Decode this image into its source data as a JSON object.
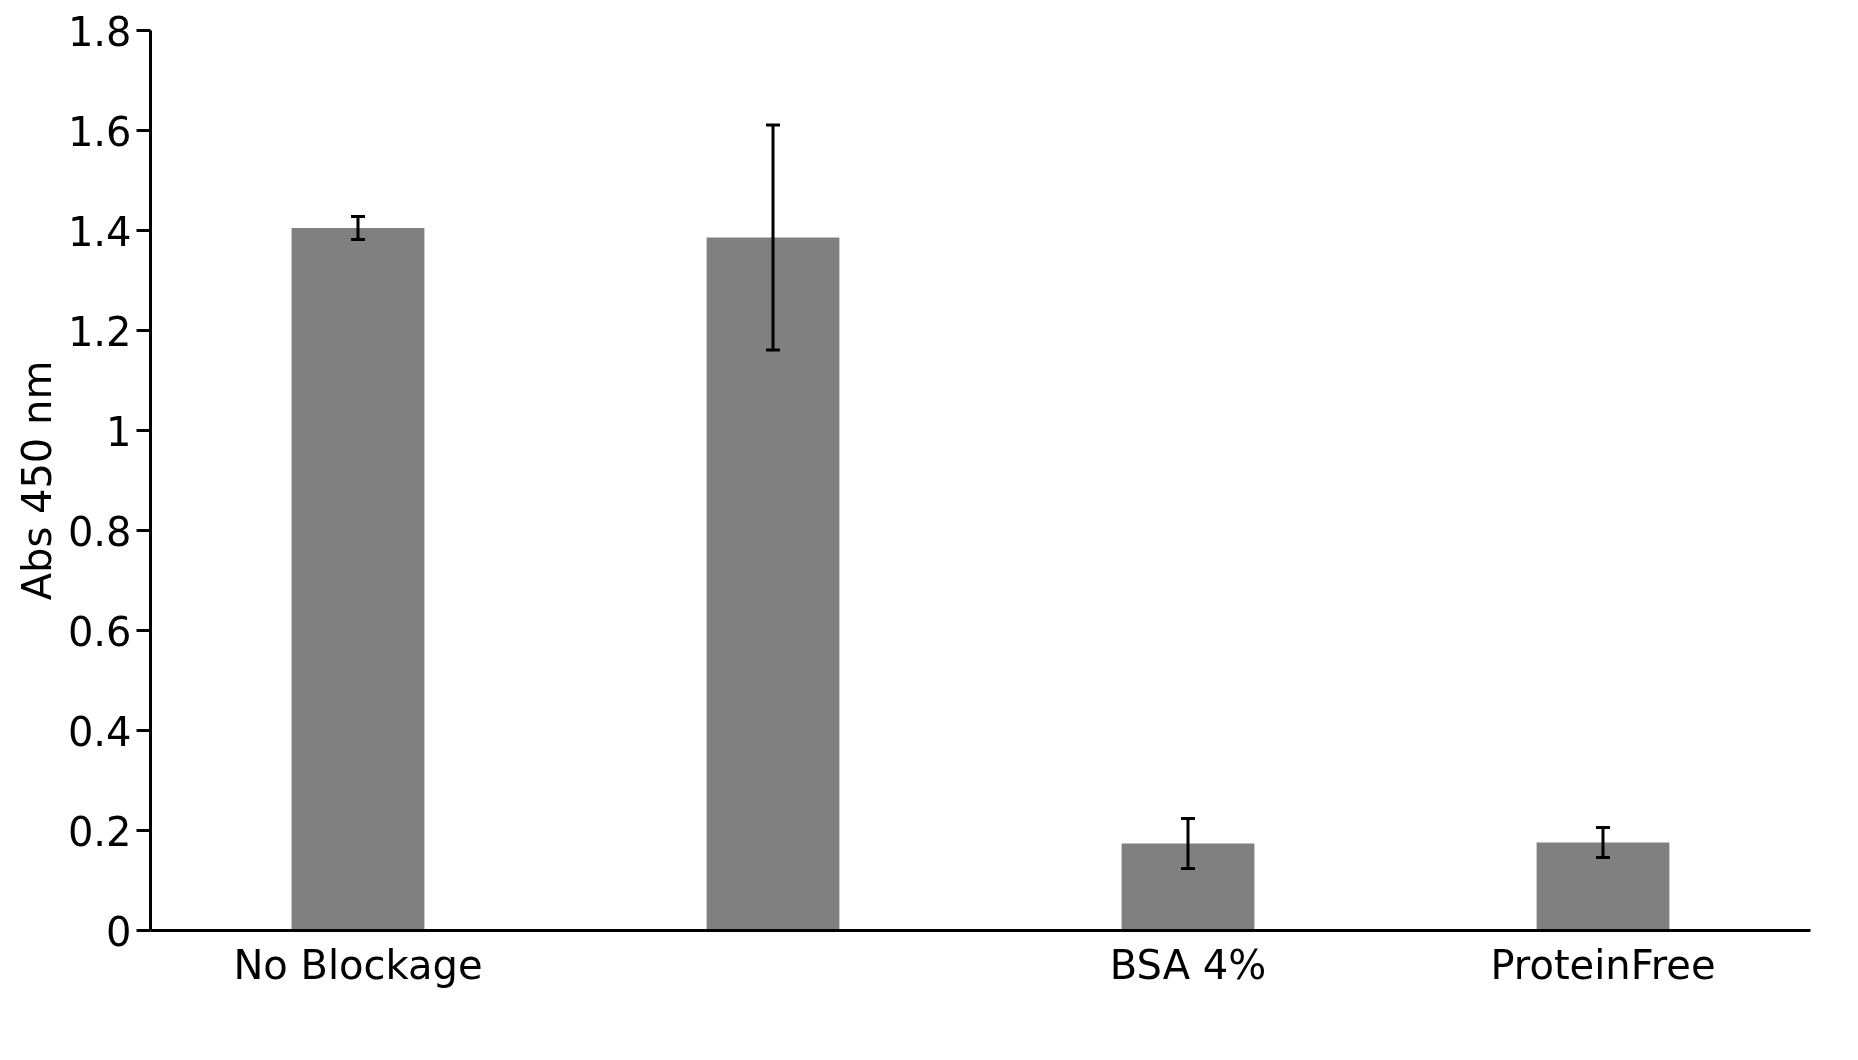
{
  "chart_data": {
    "type": "bar",
    "ylabel": "Abs 450 nm",
    "categories": [
      "No Blockage",
      null,
      "BSA 4%",
      "ProteinFree"
    ],
    "values": [
      1.405,
      1.386,
      0.174,
      0.176
    ],
    "errors": [
      0.023,
      0.225,
      0.05,
      0.03
    ],
    "color": "#808080",
    "ylim": [
      0,
      1.8
    ],
    "yticks": [
      0,
      0.2,
      0.4,
      0.6,
      0.8,
      1,
      1.2,
      1.4,
      1.6,
      1.8
    ],
    "grid": false
  }
}
